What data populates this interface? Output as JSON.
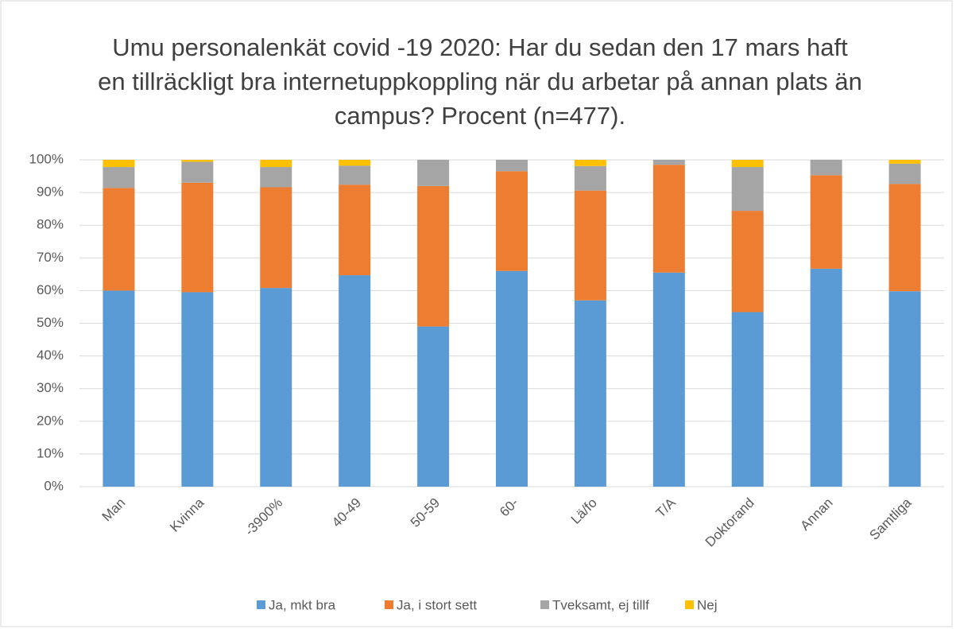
{
  "chart_data": {
    "type": "stacked_bar",
    "title": "Umu personalenkät covid -19 2020: Har du sedan den 17 mars haft en tillräckligt bra internetuppkoppling när du arbetar på annan plats än campus? Procent (n=477).",
    "categories": [
      "Man",
      "Kvinna",
      "-3900%",
      "40-49",
      "50-59",
      "60-",
      "Lä/fo",
      "T/A",
      "Doktorand",
      "Annan",
      "Samtliga"
    ],
    "series": [
      {
        "name": "Ja, mkt bra",
        "color": "#5b9bd5",
        "values": [
          60,
          59.5,
          60.8,
          64.7,
          49,
          66,
          57,
          65.5,
          53.4,
          66.7,
          59.8
        ]
      },
      {
        "name": "Ja, i stort sett",
        "color": "#ed7d31",
        "values": [
          31.4,
          33.5,
          30.8,
          27.7,
          43,
          30.5,
          33.6,
          33,
          31,
          28.6,
          32.8
        ]
      },
      {
        "name": "Tveksamt, ej tillf",
        "color": "#a5a5a5",
        "values": [
          6.4,
          6.4,
          6.2,
          5.8,
          8,
          3.5,
          7.5,
          1.5,
          13.4,
          4.7,
          6.2
        ]
      },
      {
        "name": "Nej",
        "color": "#ffc000",
        "values": [
          2.2,
          0.6,
          2.2,
          1.8,
          0,
          0,
          1.9,
          0,
          2.2,
          0,
          1.2
        ]
      }
    ],
    "ylim": [
      0,
      100
    ],
    "yticks": [
      {
        "value": 0,
        "label": "0%"
      },
      {
        "value": 10,
        "label": "10%"
      },
      {
        "value": 20,
        "label": "20%"
      },
      {
        "value": 30,
        "label": "30%"
      },
      {
        "value": 40,
        "label": "40%"
      },
      {
        "value": 50,
        "label": "50%"
      },
      {
        "value": 60,
        "label": "60%"
      },
      {
        "value": 70,
        "label": "70%"
      },
      {
        "value": 80,
        "label": "80%"
      },
      {
        "value": 90,
        "label": "90%"
      },
      {
        "value": 100,
        "label": "100%"
      }
    ],
    "grid": true,
    "legend": "bottom"
  }
}
